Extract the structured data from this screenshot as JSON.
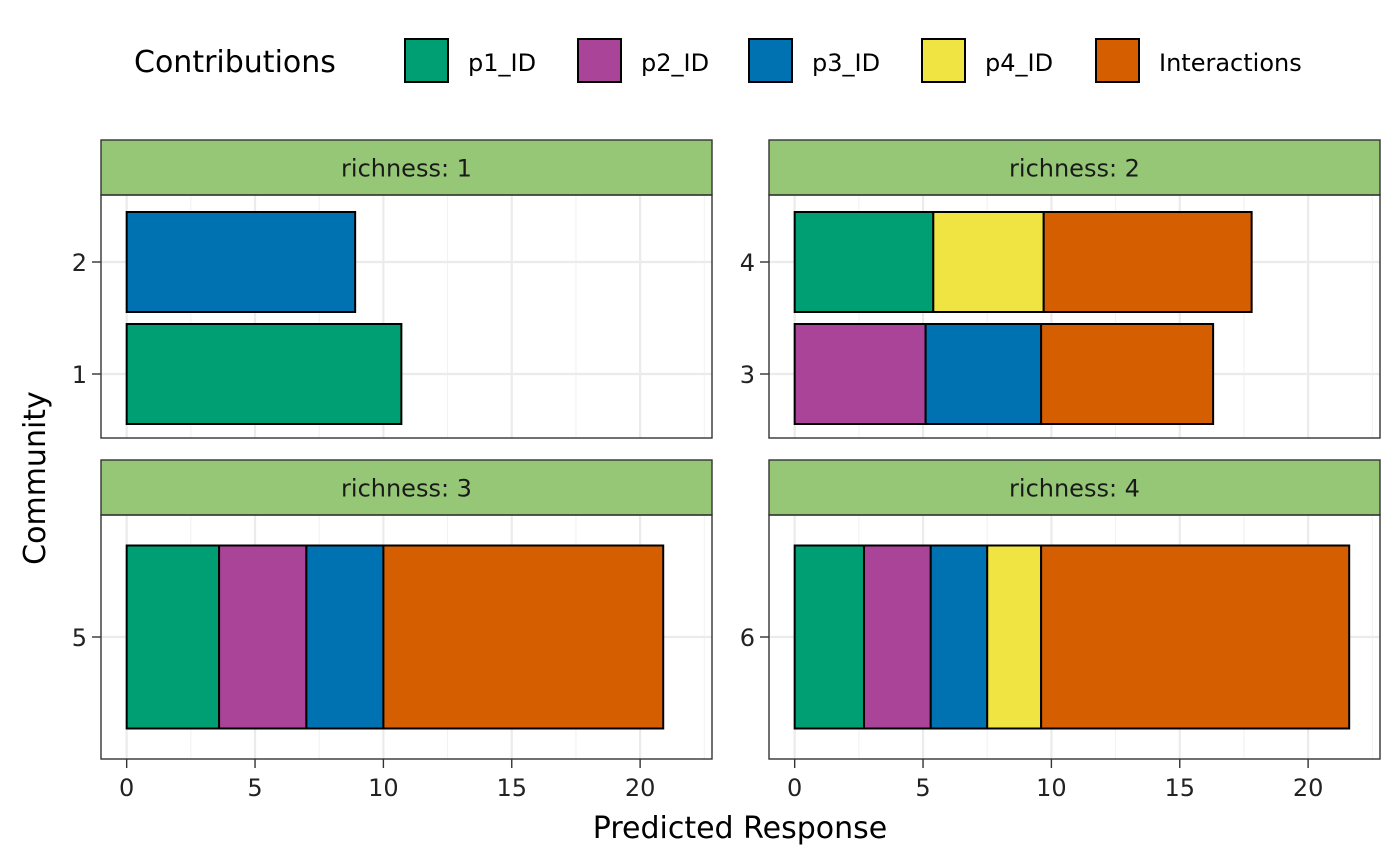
{
  "chart_data": {
    "type": "bar",
    "orientation": "horizontal",
    "stacked": true,
    "xlabel": "Predicted Response",
    "ylabel": "Community",
    "xlim": [
      -1,
      22.8
    ],
    "x_ticks": [
      0,
      5,
      10,
      15,
      20
    ],
    "grid": true,
    "legend": {
      "title": "Contributions",
      "position": "top",
      "entries": [
        "p1_ID",
        "p2_ID",
        "p3_ID",
        "p4_ID",
        "Interactions"
      ]
    },
    "colors": {
      "p1_ID": "#009e73",
      "p2_ID": "#aa4499",
      "p3_ID": "#0072b2",
      "p4_ID": "#f0e442",
      "Interactions": "#d55e00",
      "strip": "#96c776"
    },
    "facets": [
      {
        "strip": "richness: 1",
        "communities": [
          {
            "label": "2",
            "segments": [
              {
                "component": "p3_ID",
                "value": 8.9
              }
            ]
          },
          {
            "label": "1",
            "segments": [
              {
                "component": "p1_ID",
                "value": 10.7
              }
            ]
          }
        ]
      },
      {
        "strip": "richness: 2",
        "communities": [
          {
            "label": "4",
            "segments": [
              {
                "component": "p1_ID",
                "value": 5.4
              },
              {
                "component": "p4_ID",
                "value": 4.3
              },
              {
                "component": "Interactions",
                "value": 8.1
              }
            ]
          },
          {
            "label": "3",
            "segments": [
              {
                "component": "p2_ID",
                "value": 5.1
              },
              {
                "component": "p3_ID",
                "value": 4.5
              },
              {
                "component": "Interactions",
                "value": 6.7
              }
            ]
          }
        ]
      },
      {
        "strip": "richness: 3",
        "communities": [
          {
            "label": "5",
            "segments": [
              {
                "component": "p1_ID",
                "value": 3.6
              },
              {
                "component": "p2_ID",
                "value": 3.4
              },
              {
                "component": "p3_ID",
                "value": 3.0
              },
              {
                "component": "Interactions",
                "value": 10.9
              }
            ]
          }
        ]
      },
      {
        "strip": "richness: 4",
        "communities": [
          {
            "label": "6",
            "segments": [
              {
                "component": "p1_ID",
                "value": 2.7
              },
              {
                "component": "p2_ID",
                "value": 2.6
              },
              {
                "component": "p3_ID",
                "value": 2.2
              },
              {
                "component": "p4_ID",
                "value": 2.1
              },
              {
                "component": "Interactions",
                "value": 12.0
              }
            ]
          }
        ]
      }
    ]
  }
}
